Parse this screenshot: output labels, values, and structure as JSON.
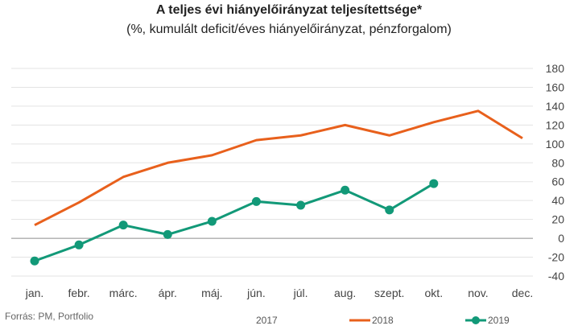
{
  "chart_data": {
    "type": "line",
    "title": "A teljes évi hiányelőirányzat teljesítettsége*",
    "subtitle": "(%, kumulált deficit/éves hiányelőirányzat, pénzforgalom)",
    "categories": [
      "jan.",
      "febr.",
      "márc.",
      "ápr.",
      "máj.",
      "jún.",
      "júl.",
      "aug.",
      "szept.",
      "okt.",
      "nov.",
      "dec."
    ],
    "ylim": [
      -40,
      180
    ],
    "yticks": [
      -40,
      -20,
      0,
      20,
      40,
      60,
      80,
      100,
      120,
      140,
      160,
      180
    ],
    "grid": true,
    "legend_position": "bottom",
    "series": [
      {
        "name": "2017",
        "color": "#7f7f7f",
        "values": [
          null,
          null,
          null,
          null,
          null,
          null,
          null,
          null,
          null,
          null,
          null,
          null
        ],
        "markers": false
      },
      {
        "name": "2018",
        "color": "#e8601c",
        "values": [
          14,
          38,
          65,
          80,
          88,
          104,
          109,
          120,
          109,
          123,
          135,
          106
        ],
        "markers": false
      },
      {
        "name": "2019",
        "color": "#129978",
        "values": [
          -24,
          -7,
          14,
          4,
          18,
          39,
          35,
          51,
          30,
          58,
          null,
          null
        ],
        "markers": true
      }
    ]
  },
  "source": "Forrás: PM, Portfolio"
}
